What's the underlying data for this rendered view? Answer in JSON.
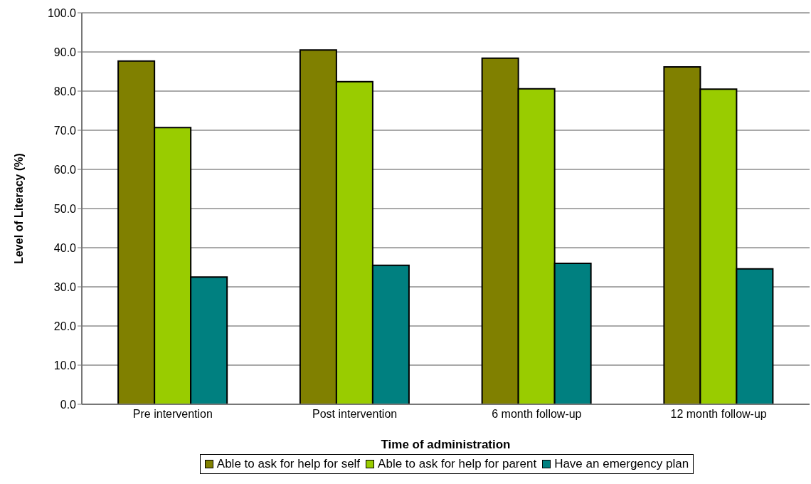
{
  "chart_data": {
    "type": "bar",
    "xlabel": "Time of administration",
    "ylabel": "Level of Literacy (%)",
    "categories": [
      "Pre intervention",
      "Post intervention",
      "6 month follow-up",
      "12 month follow-up"
    ],
    "series": [
      {
        "name": "Able to ask for help for self",
        "color": "#808000",
        "values": [
          87.7,
          90.5,
          88.4,
          86.2
        ]
      },
      {
        "name": "Able to ask for help for parent",
        "color": "#99cc00",
        "values": [
          70.7,
          82.4,
          80.6,
          80.5
        ]
      },
      {
        "name": "Have an emergency plan",
        "color": "#008080",
        "values": [
          32.5,
          35.5,
          36.0,
          34.6
        ]
      }
    ],
    "ylim": [
      0,
      100
    ],
    "yticks": [
      {
        "value": 0,
        "label": "0.0"
      },
      {
        "value": 10,
        "label": "10.0"
      },
      {
        "value": 20,
        "label": "20.0"
      },
      {
        "value": 30,
        "label": "30.0"
      },
      {
        "value": 40,
        "label": "40.0"
      },
      {
        "value": 50,
        "label": "50.0"
      },
      {
        "value": 60,
        "label": "60.0"
      },
      {
        "value": 70,
        "label": "70.0"
      },
      {
        "value": 80,
        "label": "80.0"
      },
      {
        "value": 90,
        "label": "90.0"
      },
      {
        "value": 100,
        "label": "100.0"
      }
    ],
    "grid": "y",
    "legend": "bottom"
  }
}
